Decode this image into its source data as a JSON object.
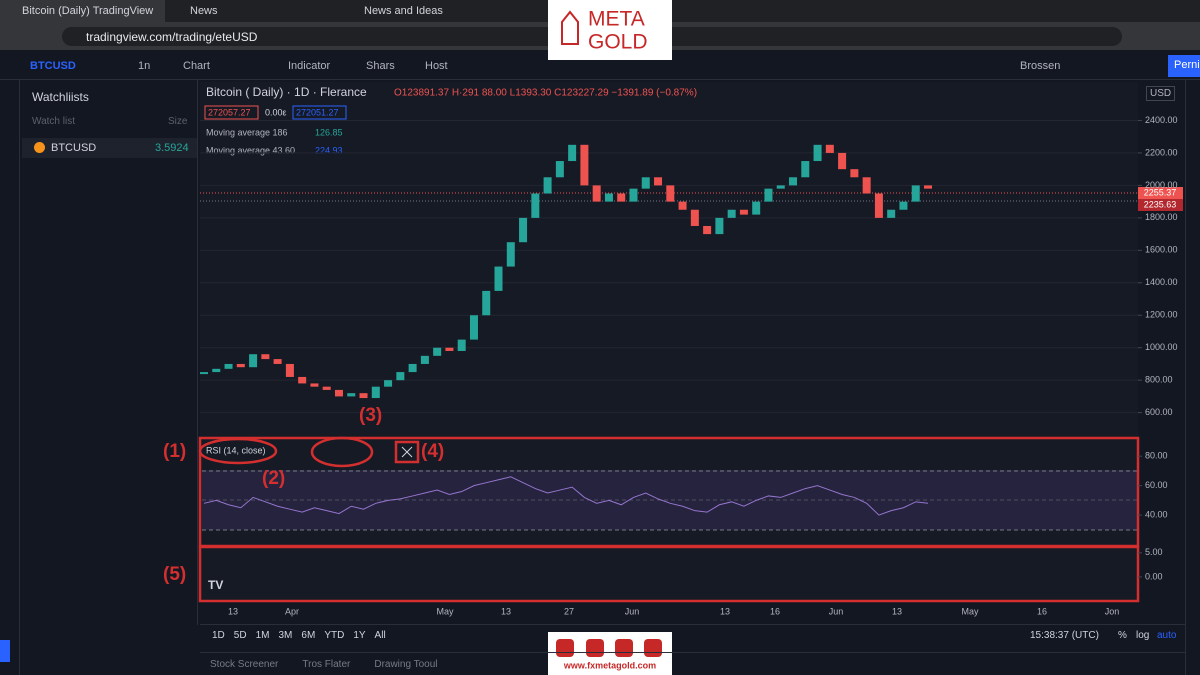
{
  "browser": {
    "tabs": [
      "Bitcoin (Daily)  TradingView",
      "News",
      "News and Ideas"
    ],
    "url": "tradingview.com/trading/eteUSD"
  },
  "toolbar": {
    "symbol": "BTCUSD",
    "interval": "1n",
    "items": [
      "Chart",
      "Indicator",
      "Shars",
      "Host"
    ],
    "layout": "Brossen",
    "publish": "Pernis"
  },
  "watchlist": {
    "title": "Watchliists",
    "col1": "Watch list",
    "col2": "Size",
    "rows": [
      {
        "symbol": "BTCUSD",
        "value": "3.5924"
      }
    ]
  },
  "legend": {
    "title": "Bitcoin ( Daily) · 1D · Flerance",
    "ohlc": "O123891.37  H·291 88.00  L1393.30  C123227.29  −1391.89 (−0.87%)",
    "bid": "272057.27",
    "spread": "0.00ε",
    "ask": "272051.27",
    "ma1_label": "Moving average 186",
    "ma1_value": "126.85",
    "ma2_label": "Moving average 43.60",
    "ma2_value": "224.93"
  },
  "price_chart": {
    "currency": "USD",
    "last_labels": [
      "2255.37",
      "2235.63"
    ],
    "closes": [
      850,
      870,
      900,
      880,
      960,
      930,
      900,
      820,
      780,
      760,
      740,
      700,
      720,
      690,
      760,
      800,
      850,
      900,
      950,
      1000,
      980,
      1050,
      1200,
      1350,
      1500,
      1650,
      1800,
      1950,
      2050,
      2150,
      2250,
      2000,
      1900,
      1950,
      1900,
      1980,
      2050,
      2000,
      1900,
      1850,
      1750,
      1700,
      1800,
      1850,
      1820,
      1900,
      1980,
      2000,
      2050,
      2150,
      2250,
      2200,
      2100,
      2050,
      1950,
      1800,
      1850,
      1900,
      2000,
      1980
    ],
    "ylim": [
      450,
      2600
    ],
    "yticks": [
      {
        "value": 2400,
        "label": "2400.00"
      },
      {
        "value": 2200,
        "label": "2200.00"
      },
      {
        "value": 2000,
        "label": "2000.00"
      },
      {
        "value": 1800,
        "label": "1800.00"
      },
      {
        "value": 1600,
        "label": "1600.00"
      },
      {
        "value": 1400,
        "label": "1400.00"
      },
      {
        "value": 1200,
        "label": "1200.00"
      },
      {
        "value": 1000,
        "label": "1000.00"
      },
      {
        "value": 800,
        "label": "800.00"
      },
      {
        "value": 600,
        "label": "600.00"
      }
    ]
  },
  "rsi": {
    "label": "RSI (14, close)",
    "values": [
      48,
      50,
      47,
      45,
      52,
      49,
      46,
      44,
      42,
      45,
      43,
      41,
      46,
      44,
      48,
      50,
      51,
      53,
      55,
      57,
      54,
      56,
      60,
      62,
      64,
      66,
      62,
      58,
      55,
      57,
      59,
      52,
      48,
      50,
      47,
      52,
      55,
      51,
      48,
      46,
      43,
      42,
      47,
      49,
      46,
      50,
      53,
      52,
      55,
      58,
      60,
      57,
      54,
      52,
      48,
      40,
      43,
      45,
      49,
      48
    ],
    "ylim": [
      19,
      91
    ],
    "yticks": [
      {
        "value": 80,
        "label": "80.00"
      },
      {
        "value": 60,
        "label": "60.00"
      },
      {
        "value": 40,
        "label": "40.00"
      }
    ]
  },
  "pane5": {
    "ylim": [
      -4.8,
      6
    ],
    "yticks": [
      {
        "value": 5,
        "label": "5.00"
      },
      {
        "value": 0,
        "label": "0.00"
      }
    ]
  },
  "xaxis": {
    "labels": [
      "13",
      "Apr",
      "May",
      "13",
      "27",
      "Jun",
      "13",
      "16",
      "Jun",
      "13",
      "May",
      "16",
      "Jon"
    ]
  },
  "timeframes": [
    "1D",
    "5D",
    "1M",
    "3M",
    "6M",
    "YTD",
    "1Y",
    "All"
  ],
  "status": {
    "clock": "15:38:37 (UTC)",
    "percent": "%",
    "log": "log",
    "auto": "auto"
  },
  "bottom_tabs": [
    "Stock Screener",
    "Tros Flater",
    "Drawing Tooul"
  ],
  "annotations": [
    "(1)",
    "(2)",
    "(3)",
    "(4)",
    "(5)"
  ],
  "branding": {
    "logo_top": "META",
    "logo_bottom": "GOLD",
    "site": "www.fxmetagold.com"
  }
}
